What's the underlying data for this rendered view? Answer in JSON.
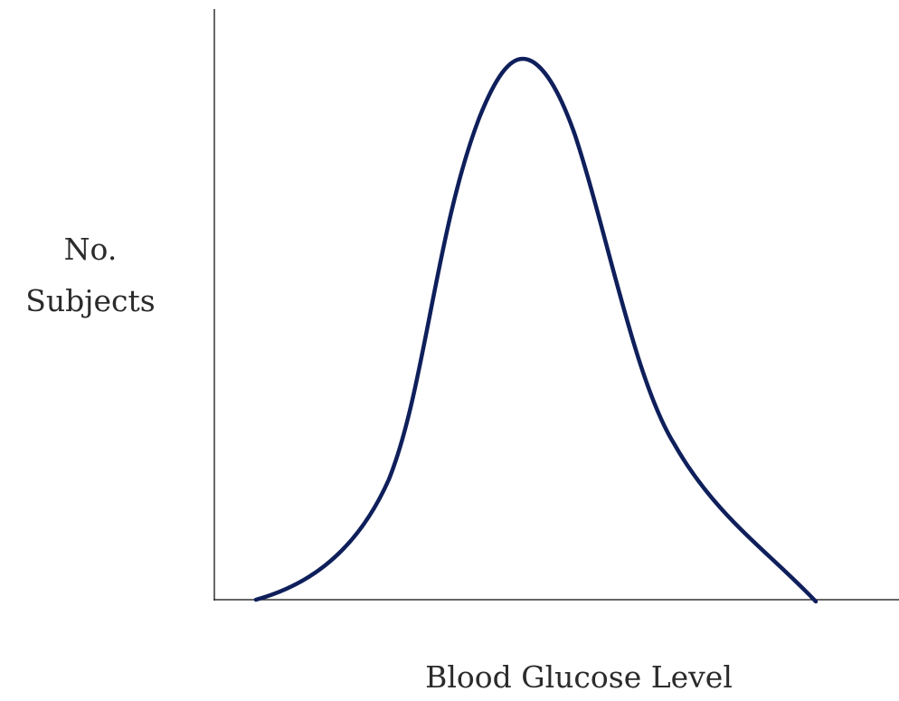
{
  "axes": {
    "y_label": [
      "No.",
      "Subjects"
    ],
    "x_label": "Blood Glucose Level"
  }
}
